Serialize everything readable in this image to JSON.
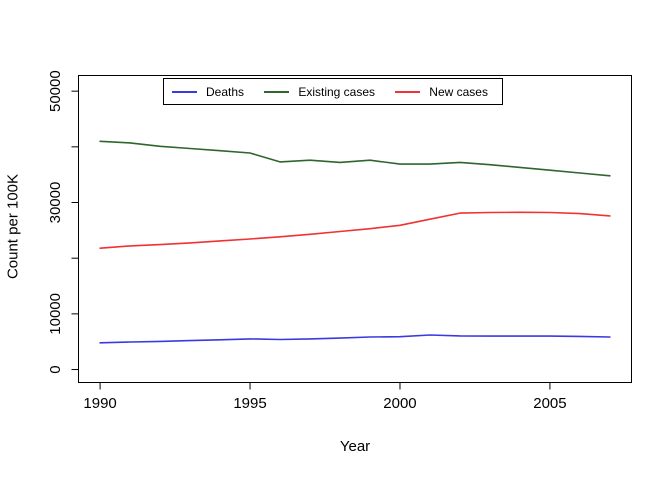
{
  "figure": {
    "xlabel": "Year",
    "ylabel": "Count per 100K",
    "background_color": "#ffffff",
    "axis_color": "#000000"
  },
  "legend": {
    "position": "top-center-inside",
    "entries": [
      {
        "label": "Deaths",
        "color": "#3a3ae0"
      },
      {
        "label": "Existing cases",
        "color": "#2e662e"
      },
      {
        "label": "New cases",
        "color": "#f03232"
      }
    ]
  },
  "chart_data": {
    "type": "line",
    "title": "",
    "xlabel": "Year",
    "ylabel": "Count per 100K",
    "grid": false,
    "legend_position": "top-center-inside",
    "xlim": [
      1989.3,
      2007.7
    ],
    "ylim": [
      0,
      52000
    ],
    "x_ticks": [
      1990,
      1995,
      2000,
      2005
    ],
    "y_ticks": [
      0,
      10000,
      20000,
      30000,
      40000,
      50000
    ],
    "y_tick_labels": [
      "0",
      "10000",
      "",
      "30000",
      "",
      "50000"
    ],
    "x": [
      1990,
      1991,
      1992,
      1993,
      1994,
      1995,
      1996,
      1997,
      1998,
      1999,
      2000,
      2001,
      2002,
      2003,
      2004,
      2005,
      2006,
      2007
    ],
    "series": [
      {
        "name": "Deaths",
        "color": "#3a3ae0",
        "values": [
          4800,
          4950,
          5050,
          5200,
          5350,
          5500,
          5400,
          5500,
          5650,
          5850,
          5900,
          6200,
          6050,
          6000,
          6000,
          6000,
          5950,
          5850
        ]
      },
      {
        "name": "Existing cases",
        "color": "#2e662e",
        "values": [
          41000,
          40700,
          40100,
          39700,
          39300,
          38900,
          37300,
          37600,
          37200,
          37600,
          36900,
          36900,
          37200,
          36800,
          36300,
          35800,
          35300,
          34800
        ]
      },
      {
        "name": "New cases",
        "color": "#f03232",
        "values": [
          21800,
          22200,
          22450,
          22750,
          23100,
          23450,
          23850,
          24300,
          24800,
          25300,
          25900,
          27000,
          28100,
          28200,
          28250,
          28200,
          28000,
          27600
        ]
      }
    ]
  }
}
